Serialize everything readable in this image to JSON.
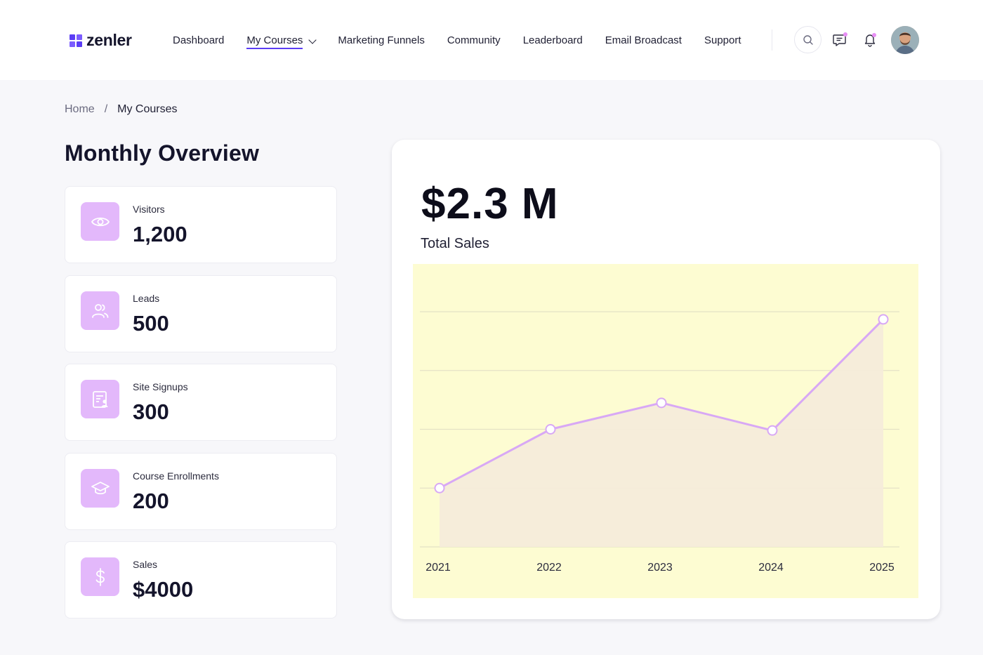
{
  "brand": {
    "name": "zenler",
    "color": "#5b3df5"
  },
  "nav": {
    "items": [
      {
        "label": "Dashboard",
        "active": false
      },
      {
        "label": "My Courses",
        "active": true,
        "has_dropdown": true
      },
      {
        "label": "Marketing Funnels",
        "active": false
      },
      {
        "label": "Community",
        "active": false
      },
      {
        "label": "Leaderboard",
        "active": false
      },
      {
        "label": "Email Broadcast",
        "active": false
      },
      {
        "label": "Support",
        "active": false
      }
    ],
    "icons": [
      "search-icon",
      "chat-icon",
      "bell-icon",
      "avatar"
    ]
  },
  "breadcrumb": {
    "home": "Home",
    "separator": "/",
    "current": "My Courses"
  },
  "page_title": "Monthly Overview",
  "stats": [
    {
      "label": "Visitors",
      "value": "1,200",
      "icon": "eye-icon"
    },
    {
      "label": "Leads",
      "value": "500",
      "icon": "users-icon"
    },
    {
      "label": "Site Signups",
      "value": "300",
      "icon": "signup-form-icon"
    },
    {
      "label": "Course Enrollments",
      "value": "200",
      "icon": "graduation-cap-icon"
    },
    {
      "label": "Sales",
      "value": "$4000",
      "icon": "dollar-icon"
    }
  ],
  "sales_panel": {
    "value": "$2.3 M",
    "label": "Total Sales"
  },
  "colors": {
    "accent": "#5b3df5",
    "icon_bg": "#e3b8fb",
    "line": "#d8a8f5",
    "chart_bg": "#fdfcd2",
    "area_fill": "#f5ecda"
  },
  "chart_data": {
    "type": "area",
    "title": "",
    "xlabel": "",
    "ylabel": "",
    "categories": [
      "2021",
      "2022",
      "2023",
      "2024",
      "2025"
    ],
    "series": [
      {
        "values": [
          1.0,
          2.0,
          2.45,
          1.98,
          3.87
        ]
      }
    ],
    "ylim": [
      0,
      4
    ],
    "grid": true,
    "legend": "none"
  }
}
